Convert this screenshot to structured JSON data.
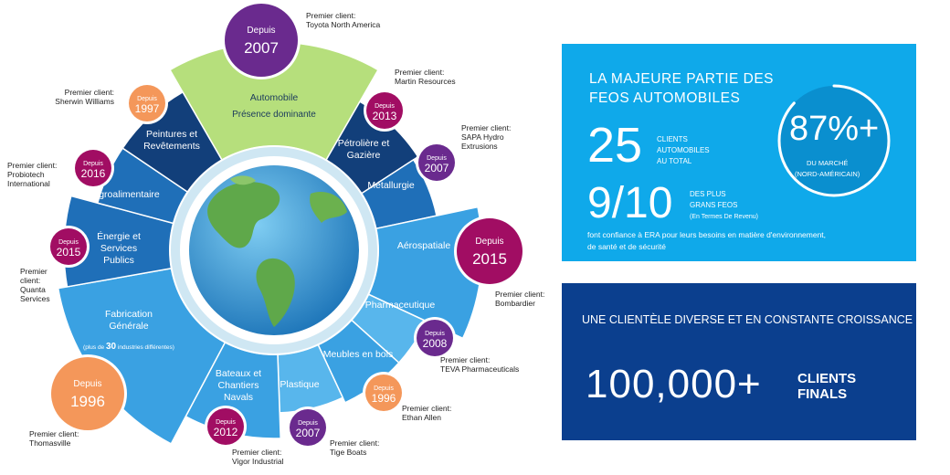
{
  "colors": {
    "auto_yellow_green": "#b6df7c",
    "dark_navy": "#123f7a",
    "mid_blue": "#1f6fb8",
    "light_blue": "#3aa1e2",
    "pale_blue": "#58b6ec",
    "badge_purple": "#6a2a8e",
    "badge_magenta": "#a10d63",
    "badge_orange": "#f4975a",
    "box_light": "#0fa9ea",
    "box_dark": "#0b3f8e"
  },
  "sectors": [
    {
      "id": "automobile",
      "label": [
        "Automobile",
        "Présence dominante"
      ]
    },
    {
      "id": "petroliere",
      "label": [
        "Pétrolière et",
        "Gazière"
      ]
    },
    {
      "id": "metallurgie",
      "label": [
        "Métallurgie"
      ]
    },
    {
      "id": "aerospatiale",
      "label": [
        "Aérospatiale"
      ]
    },
    {
      "id": "pharmaceutique",
      "label": [
        "Pharmaceutique"
      ]
    },
    {
      "id": "meubles",
      "label": [
        "Meubles en bois"
      ]
    },
    {
      "id": "plastique",
      "label": [
        "Plastique"
      ]
    },
    {
      "id": "bateaux",
      "label": [
        "Bateaux et",
        "Chantiers",
        "Navals"
      ]
    },
    {
      "id": "fabrication",
      "label": [
        "Fabrication",
        "Générale"
      ],
      "note_pre": "(plus de ",
      "note_num": "30",
      "note_post": " industries différentes)"
    },
    {
      "id": "energie",
      "label": [
        "Énergie et",
        "Services",
        "Publics"
      ]
    },
    {
      "id": "agro",
      "label": [
        "Agroalimentaire"
      ]
    },
    {
      "id": "peintures",
      "label": [
        "Peintures et",
        "Revêtements"
      ]
    }
  ],
  "badges": [
    {
      "id": "automobile",
      "depuis": "Depuis",
      "year": "2007",
      "color": "purple",
      "client": [
        "Premier client:",
        "Toyota North America"
      ]
    },
    {
      "id": "petroliere",
      "depuis": "Depuis",
      "year": "2013",
      "color": "magenta",
      "client": [
        "Premier client:",
        "Martin Resources"
      ]
    },
    {
      "id": "metallurgie",
      "depuis": "Depuis",
      "year": "2007",
      "color": "purple",
      "client": [
        "Premier client:",
        "SAPA Hydro",
        "Extrusions"
      ]
    },
    {
      "id": "aerospatiale",
      "depuis": "Depuis",
      "year": "2015",
      "color": "magenta",
      "client": [
        "Premier client:",
        "Bombardier"
      ]
    },
    {
      "id": "pharmaceutique",
      "depuis": "Depuis",
      "year": "2008",
      "color": "purple",
      "client": [
        "Premier client:",
        "TEVA Pharmaceuticals"
      ]
    },
    {
      "id": "meubles",
      "depuis": "Depuis",
      "year": "1996",
      "color": "orange",
      "client": [
        "Premier client:",
        "Ethan Allen"
      ]
    },
    {
      "id": "plastique",
      "depuis": "Depuis",
      "year": "2007",
      "color": "purple",
      "client": [
        "Premier client:",
        "Tige Boats"
      ]
    },
    {
      "id": "bateaux",
      "depuis": "Depuis",
      "year": "2012",
      "color": "magenta",
      "client": [
        "Premier client:",
        "Vigor Industrial"
      ]
    },
    {
      "id": "fabrication",
      "depuis": "Depuis",
      "year": "1996",
      "color": "orange",
      "client": [
        "Premier client:",
        "Thomasville"
      ]
    },
    {
      "id": "energie",
      "depuis": "Depuis",
      "year": "2015",
      "color": "magenta",
      "client": [
        "Premier",
        "client:",
        "Quanta",
        "Services"
      ]
    },
    {
      "id": "agro",
      "depuis": "Depuis",
      "year": "2016",
      "color": "magenta",
      "client": [
        "Premier client:",
        "Probiotech",
        "International"
      ]
    },
    {
      "id": "peintures",
      "depuis": "Depuis",
      "year": "1997",
      "color": "orange",
      "client": [
        "Premier client:",
        "Sherwin Williams"
      ]
    }
  ],
  "panel_top": {
    "heading": [
      "LA MAJEURE PARTIE DES",
      "FEOS AUTOMOBILES"
    ],
    "stat1_value": "25",
    "stat1_label": [
      "CLIENTS",
      "AUTOMOBILES",
      "AU TOTAL"
    ],
    "stat2_value": "9/10",
    "stat2_label": [
      "DES PLUS",
      "GRANS FEOS"
    ],
    "stat2_note": "(En Termes De Revenu)",
    "gauge_value": "87%+",
    "gauge_fraction": 0.87,
    "gauge_label": [
      "DU MARCHÉ",
      "(NORD-AMÉRICAIN)"
    ],
    "footer": [
      "font confiance à ERA pour leurs besoins en matière d'environnement,",
      "de santé et de sécurité"
    ]
  },
  "panel_bottom": {
    "heading": "UNE CLIENTÈLE DIVERSE ET EN CONSTANTE CROISSANCE",
    "value": "100,000+",
    "label": [
      "CLIENTS",
      "FINALS"
    ]
  }
}
